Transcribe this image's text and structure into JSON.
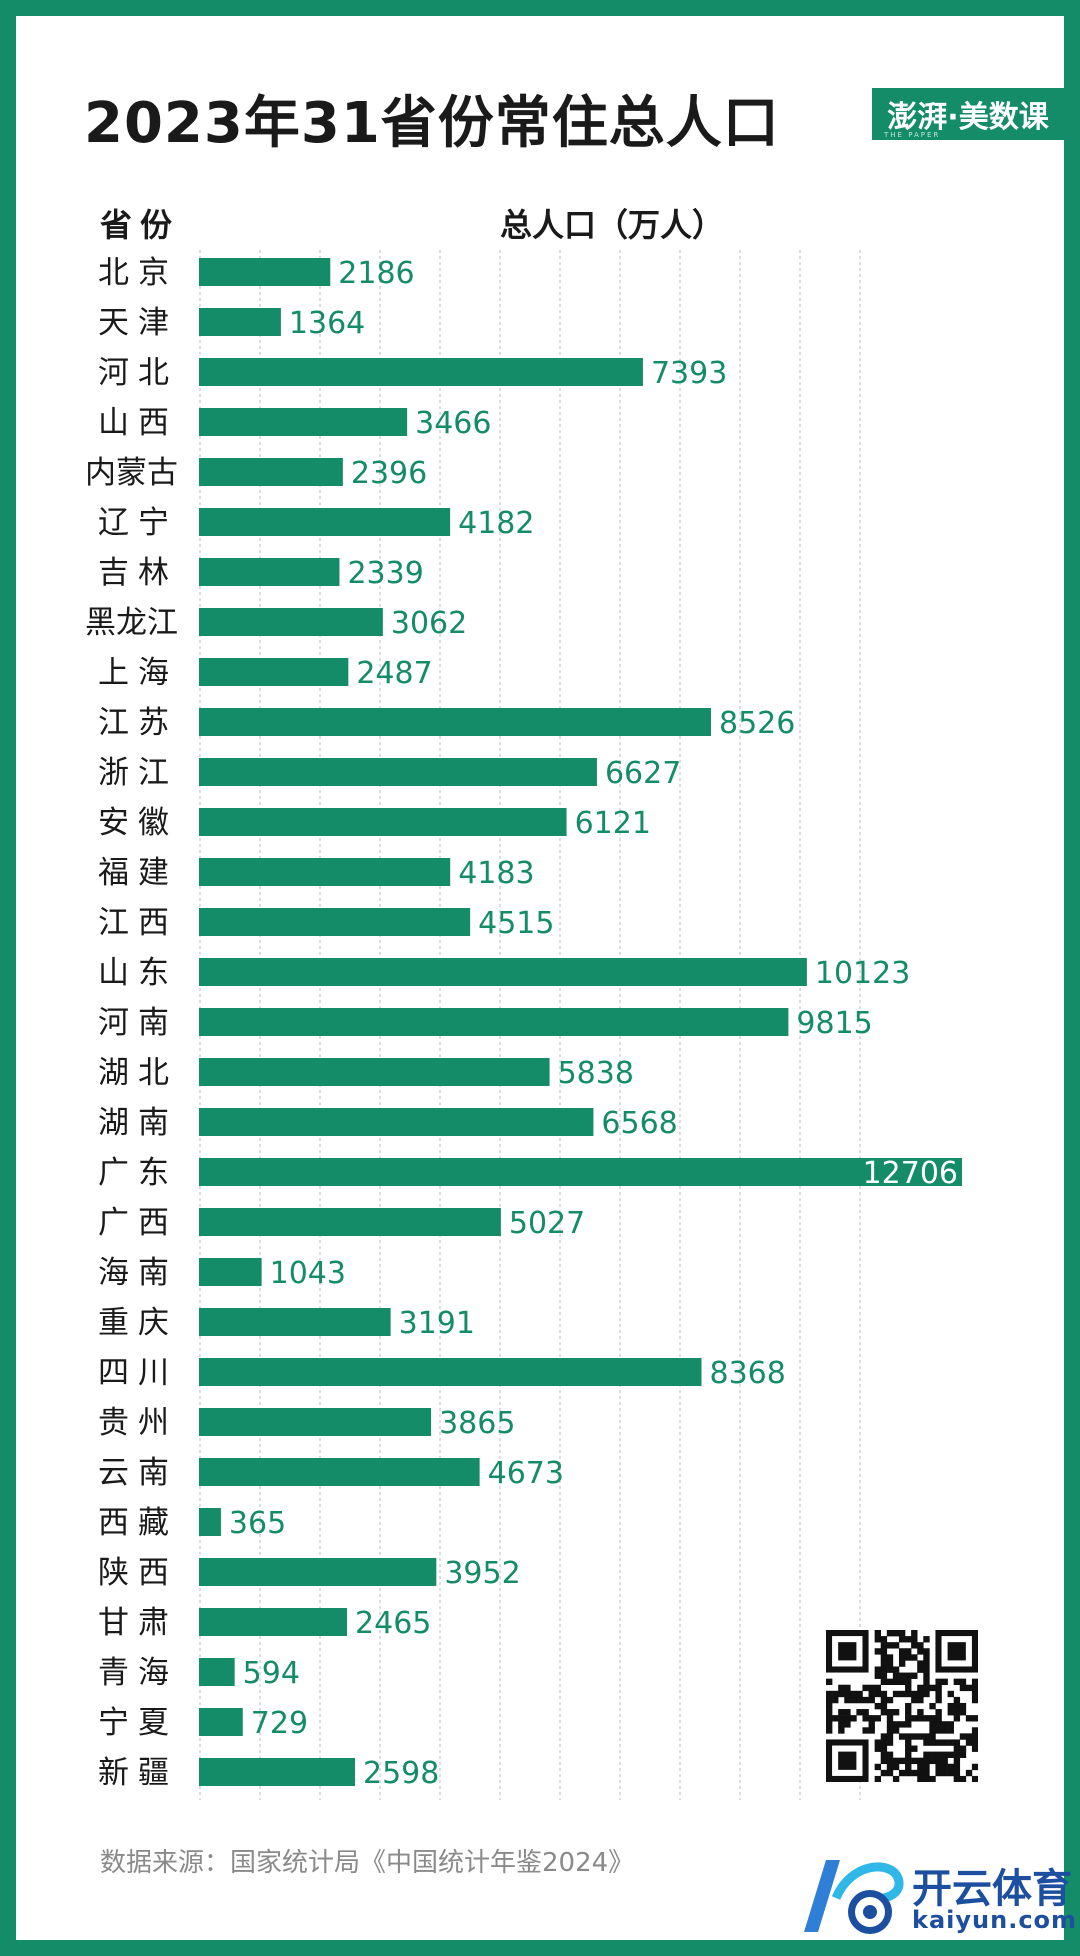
{
  "title": "2023年31省份常住总人口",
  "brand": {
    "name": "澎湃·美数课",
    "tagline": "THE PAPER"
  },
  "headers": {
    "province": "省份",
    "value": "总人口（万人）"
  },
  "source": "数据来源：国家统计局《中国统计年鉴2024》",
  "watermark": {
    "name": "开云体育",
    "url": "kaiyun.com"
  },
  "colors": {
    "bar": "#148c68",
    "label": "#148c68",
    "frame": "#148c68",
    "text": "#1a1a1a"
  },
  "icons": [
    "qr-code-icon",
    "kaiyun-logo-icon"
  ],
  "chart_data": {
    "type": "bar",
    "orientation": "horizontal",
    "xlim": [
      0,
      12706
    ],
    "grid": true,
    "categories": [
      "北京",
      "天津",
      "河北",
      "山西",
      "内蒙古",
      "辽宁",
      "吉林",
      "黑龙江",
      "上海",
      "江苏",
      "浙江",
      "安徽",
      "福建",
      "江西",
      "山东",
      "河南",
      "湖北",
      "湖南",
      "广东",
      "广西",
      "海南",
      "重庆",
      "四川",
      "贵州",
      "云南",
      "西藏",
      "陕西",
      "甘肃",
      "青海",
      "宁夏",
      "新疆"
    ],
    "values": [
      2186,
      1364,
      7393,
      3466,
      2396,
      4182,
      2339,
      3062,
      2487,
      8526,
      6627,
      6121,
      4183,
      4515,
      10123,
      9815,
      5838,
      6568,
      12706,
      5027,
      1043,
      3191,
      8368,
      3865,
      4673,
      365,
      3952,
      2465,
      594,
      729,
      2598
    ]
  }
}
